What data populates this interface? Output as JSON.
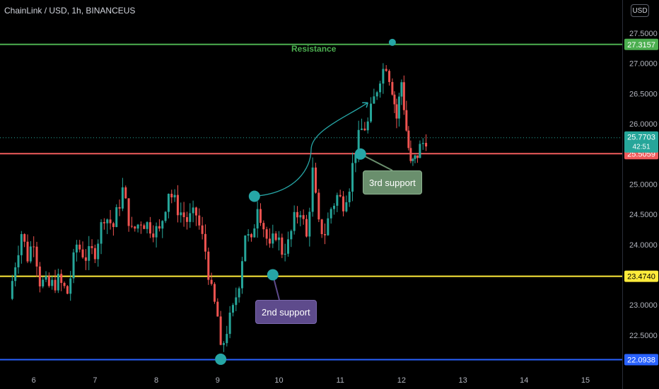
{
  "header": {
    "title": "ChainLink / USD, 1h, BINANCEUS",
    "currency_button": "USD"
  },
  "annotations": {
    "resistance_label": "Resistance",
    "support2_label": "2nd support",
    "support3_label": "3rd support"
  },
  "colors": {
    "up": "#26a69a",
    "down": "#ef5350",
    "resistance": "#4caf50",
    "support_red": "#f05c5c",
    "support_yellow": "#ffeb3b",
    "support_blue": "#2962ff",
    "marker": "#26a6a6"
  },
  "chart_data": {
    "type": "candlestick",
    "xlabel": "",
    "ylabel": "",
    "ylim": [
      21.9,
      27.7
    ],
    "x_ticks": [
      "6",
      "7",
      "8",
      "9",
      "10",
      "11",
      "12",
      "13",
      "14",
      "15"
    ],
    "y_ticks": [
      "22.5000",
      "23.0000",
      "23.5000",
      "24.0000",
      "24.5000",
      "25.0000",
      "25.5000",
      "26.0000",
      "26.5000",
      "27.0000",
      "27.5000"
    ],
    "levels": [
      {
        "name": "resistance",
        "value": 27.3157,
        "label": "27.3157",
        "color": "#4caf50"
      },
      {
        "name": "support-red",
        "value": 25.5059,
        "label": "25.5059",
        "color": "#f05c5c"
      },
      {
        "name": "support-yellow",
        "value": 23.474,
        "label": "23.4740",
        "color": "#ffeb3b"
      },
      {
        "name": "support-blue",
        "value": 22.0938,
        "label": "22.0938",
        "color": "#2962ff"
      }
    ],
    "current_price": {
      "value": 25.7703,
      "label": "25.7703",
      "countdown": "42:51"
    },
    "price_path": [
      [
        5.6,
        23.1
      ],
      [
        5.7,
        23.7
      ],
      [
        5.8,
        24.2
      ],
      [
        5.9,
        23.8
      ],
      [
        6.0,
        24.1
      ],
      [
        6.1,
        23.4
      ],
      [
        6.25,
        23.3
      ],
      [
        6.4,
        23.4
      ],
      [
        6.55,
        23.2
      ],
      [
        6.7,
        24.0
      ],
      [
        6.85,
        23.8
      ],
      [
        7.0,
        23.9
      ],
      [
        7.15,
        24.5
      ],
      [
        7.3,
        24.3
      ],
      [
        7.45,
        24.9
      ],
      [
        7.6,
        24.2
      ],
      [
        7.75,
        24.4
      ],
      [
        7.9,
        24.3
      ],
      [
        8.05,
        24.2
      ],
      [
        8.2,
        24.9
      ],
      [
        8.35,
        24.6
      ],
      [
        8.5,
        24.4
      ],
      [
        8.65,
        24.5
      ],
      [
        8.8,
        23.9
      ],
      [
        8.9,
        23.2
      ],
      [
        9.0,
        22.8
      ],
      [
        9.05,
        22.2
      ],
      [
        9.15,
        22.6
      ],
      [
        9.25,
        22.9
      ],
      [
        9.35,
        23.4
      ],
      [
        9.45,
        24.2
      ],
      [
        9.55,
        24.0
      ],
      [
        9.65,
        24.7
      ],
      [
        9.75,
        24.3
      ],
      [
        9.85,
        23.9
      ],
      [
        9.95,
        24.2
      ],
      [
        10.05,
        23.9
      ],
      [
        10.15,
        24.0
      ],
      [
        10.25,
        24.4
      ],
      [
        10.35,
        24.6
      ],
      [
        10.45,
        24.1
      ],
      [
        10.55,
        25.2
      ],
      [
        10.65,
        24.3
      ],
      [
        10.75,
        24.2
      ],
      [
        10.85,
        24.6
      ],
      [
        10.95,
        24.8
      ],
      [
        11.05,
        24.7
      ],
      [
        11.15,
        25.0
      ],
      [
        11.25,
        25.6
      ],
      [
        11.35,
        25.9
      ],
      [
        11.45,
        26.0
      ],
      [
        11.55,
        26.4
      ],
      [
        11.65,
        26.8
      ],
      [
        11.75,
        27.0
      ],
      [
        11.85,
        26.6
      ],
      [
        11.92,
        26.1
      ],
      [
        12.0,
        26.7
      ],
      [
        12.08,
        25.9
      ],
      [
        12.15,
        25.3
      ],
      [
        12.22,
        25.4
      ],
      [
        12.3,
        25.6
      ],
      [
        12.4,
        25.77
      ]
    ],
    "markers": [
      {
        "x": 9.6,
        "y": 24.8
      },
      {
        "x": 9.9,
        "y": 23.5
      },
      {
        "x": 11.33,
        "y": 25.5
      },
      {
        "x": 11.85,
        "y": 27.35
      },
      {
        "x": 9.05,
        "y": 22.1
      }
    ],
    "arrow": {
      "from": [
        9.6,
        24.8
      ],
      "to": [
        11.45,
        26.35
      ]
    }
  }
}
